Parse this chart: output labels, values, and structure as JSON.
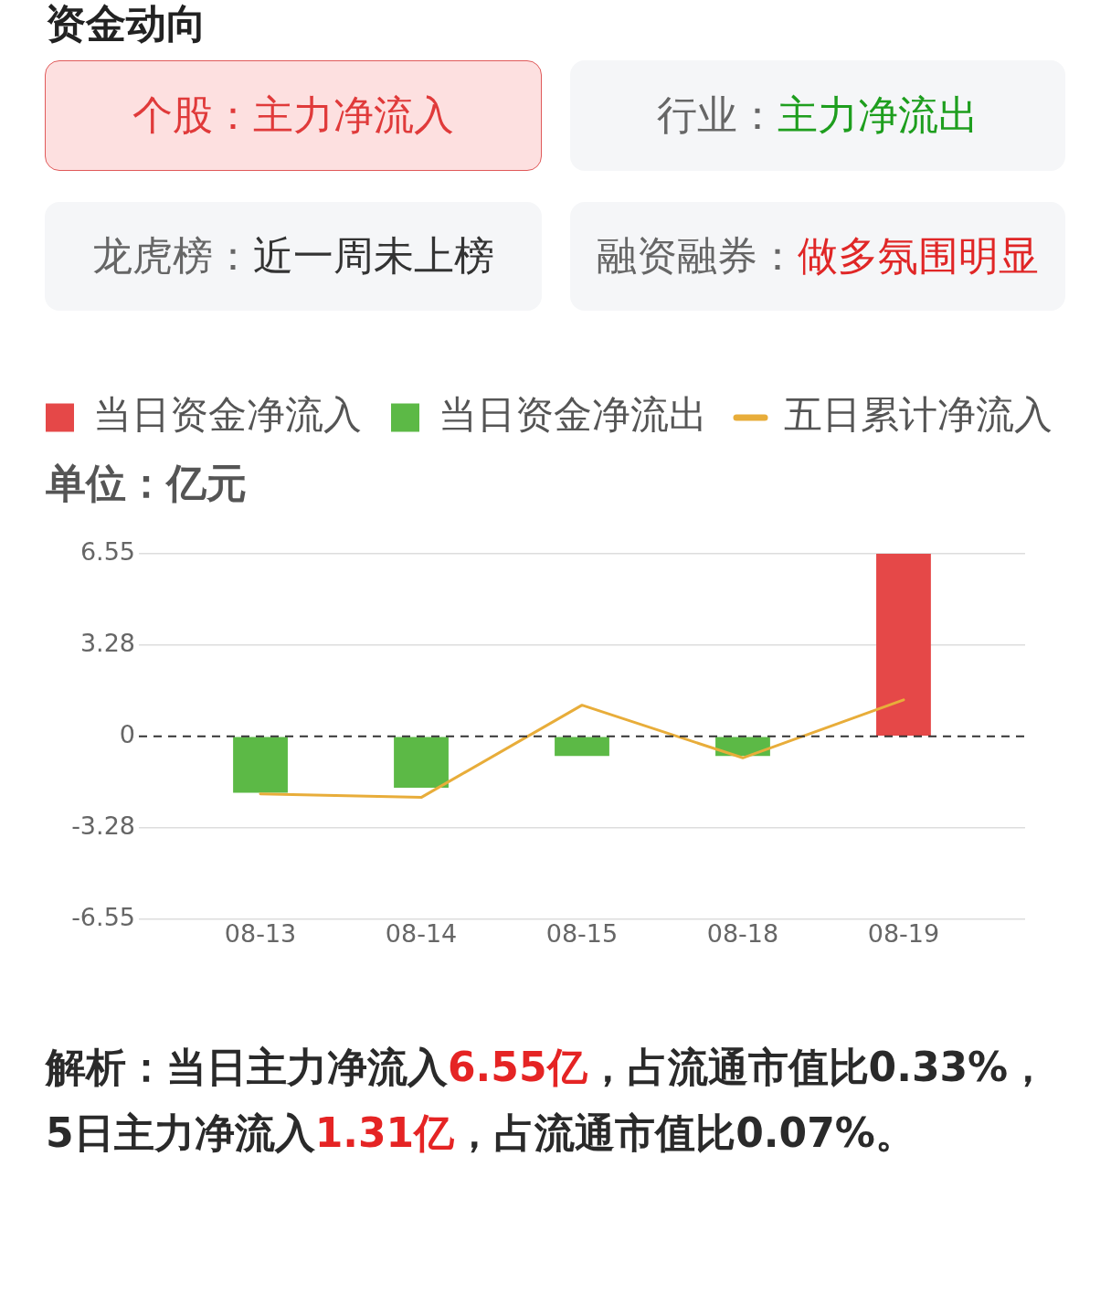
{
  "chart_data": {
    "type": "bar",
    "title": "资金动向",
    "ylabel": "单位：亿元",
    "annotations": [
      "个股：",
      "主力净流入",
      "行业：",
      "主力净流出",
      "龙虎榜：",
      "近一周未上榜",
      "融资融券：",
      "做多氛围明显",
      "解析：当日主力净流入",
      "6.55亿",
      "，占流通市值比0.33%，",
      "5日主力净流入",
      "1.31亿",
      "，占流通市值比0.07%。"
    ],
    "categories": [
      "08-13",
      "08-14",
      "08-15",
      "08-18",
      "08-19"
    ],
    "series": [
      {
        "name": "当日资金净流入",
        "color": "#e54848",
        "values": [
          null,
          null,
          null,
          null,
          6.55
        ]
      },
      {
        "name": "当日资金净流出",
        "color": "#5cb946",
        "values": [
          -2.02,
          -1.84,
          -0.7,
          -0.7,
          null
        ]
      },
      {
        "name": "五日累计净流入",
        "type": "line",
        "color": "#e8ad3a",
        "values": [
          -2.06,
          -2.19,
          1.12,
          -0.77,
          1.31
        ]
      }
    ],
    "ylim": [
      -6.55,
      6.55
    ],
    "yticks": [
      -6.55,
      -3.28,
      0,
      3.28,
      6.55
    ],
    "grid": "y",
    "legend": "top left",
    "marker": "none",
    "ref_lines": [
      {
        "axis": "y",
        "value": 0,
        "color": "#333333",
        "line_style": "dashed"
      }
    ]
  }
}
